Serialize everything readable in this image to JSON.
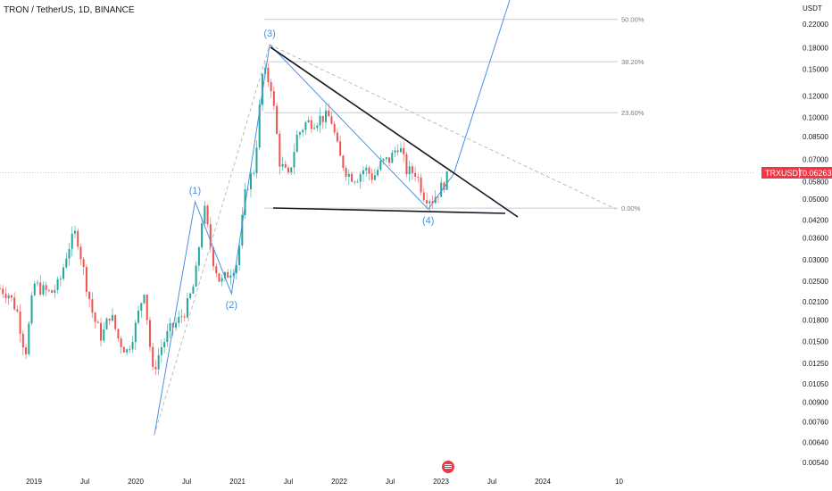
{
  "header": {
    "symbol_title": "TRON / TetherUS, 1D, BINANCE"
  },
  "price_tag": {
    "symbol": "TRXUSDT",
    "value": "0.06263",
    "color": "#f23645"
  },
  "chart_data": {
    "type": "candlestick",
    "y_scale": "log",
    "y_unit": "USDT",
    "ylim": [
      0.0052,
      0.29
    ],
    "x_ticks": [
      "2019",
      "Jul",
      "2020",
      "Jul",
      "2021",
      "Jul",
      "2022",
      "Jul",
      "2023",
      "Jul",
      "2024",
      "10"
    ],
    "y_ticks": [
      "0.22000",
      "0.18000",
      "0.15000",
      "0.12000",
      "0.10000",
      "0.08500",
      "0.07000",
      "0.05800",
      "0.05000",
      "0.04200",
      "0.03600",
      "0.03000",
      "0.02500",
      "0.02100",
      "0.01800",
      "0.01500",
      "0.01250",
      "0.01050",
      "0.00900",
      "0.00760",
      "0.00640",
      "0.00540"
    ],
    "current_price": 0.06263,
    "close_series": {
      "x": [
        "2018-09",
        "2018-10",
        "2018-11",
        "2018-12",
        "2019-01",
        "2019-02",
        "2019-03",
        "2019-04",
        "2019-05",
        "2019-06",
        "2019-07",
        "2019-08",
        "2019-09",
        "2019-10",
        "2019-11",
        "2019-12",
        "2020-01",
        "2020-02",
        "2020-03",
        "2020-04",
        "2020-05",
        "2020-06",
        "2020-07",
        "2020-08",
        "2020-09",
        "2020-10",
        "2020-11",
        "2020-12",
        "2021-01",
        "2021-02",
        "2021-03",
        "2021-04",
        "2021-05",
        "2021-06",
        "2021-07",
        "2021-08",
        "2021-09",
        "2021-10",
        "2021-11",
        "2021-12",
        "2022-01",
        "2022-02",
        "2022-03",
        "2022-04",
        "2022-05",
        "2022-06",
        "2022-07",
        "2022-08",
        "2022-09",
        "2022-10",
        "2022-11",
        "2022-12",
        "2023-01",
        "2023-02"
      ],
      "y": [
        0.0235,
        0.0225,
        0.0195,
        0.0135,
        0.0245,
        0.0232,
        0.0226,
        0.0245,
        0.033,
        0.038,
        0.026,
        0.0185,
        0.0155,
        0.0192,
        0.0152,
        0.0138,
        0.0172,
        0.0235,
        0.0115,
        0.0143,
        0.0165,
        0.0178,
        0.02,
        0.025,
        0.048,
        0.031,
        0.0245,
        0.027,
        0.0295,
        0.055,
        0.065,
        0.15,
        0.13,
        0.068,
        0.06,
        0.085,
        0.095,
        0.097,
        0.1,
        0.1,
        0.072,
        0.062,
        0.06,
        0.065,
        0.06,
        0.068,
        0.07,
        0.08,
        0.063,
        0.063,
        0.052,
        0.05,
        0.055,
        0.062
      ]
    },
    "elliott_labels": [
      {
        "label": "(1)",
        "x": "2020-08",
        "y": 0.048
      },
      {
        "label": "(2)",
        "x": "2020-11",
        "y": 0.0235
      },
      {
        "label": "(3)",
        "x": "2021-04",
        "y": 0.18
      },
      {
        "label": "(4)",
        "x": "2022-11",
        "y": 0.046
      }
    ],
    "fib_levels": [
      {
        "label": "50.00%",
        "y": 0.229
      },
      {
        "label": "38.20%",
        "y": 0.16
      },
      {
        "label": "23.60%",
        "y": 0.104
      },
      {
        "label": "0.00%",
        "y": 0.0464
      }
    ],
    "colors": {
      "up": "#26a69a",
      "down": "#ef5350",
      "wave": "#4a90e2",
      "trendline": "#131722",
      "dashed": "#b2b5be",
      "fib": "#c9cbd1",
      "axis_text": "#131722"
    }
  }
}
